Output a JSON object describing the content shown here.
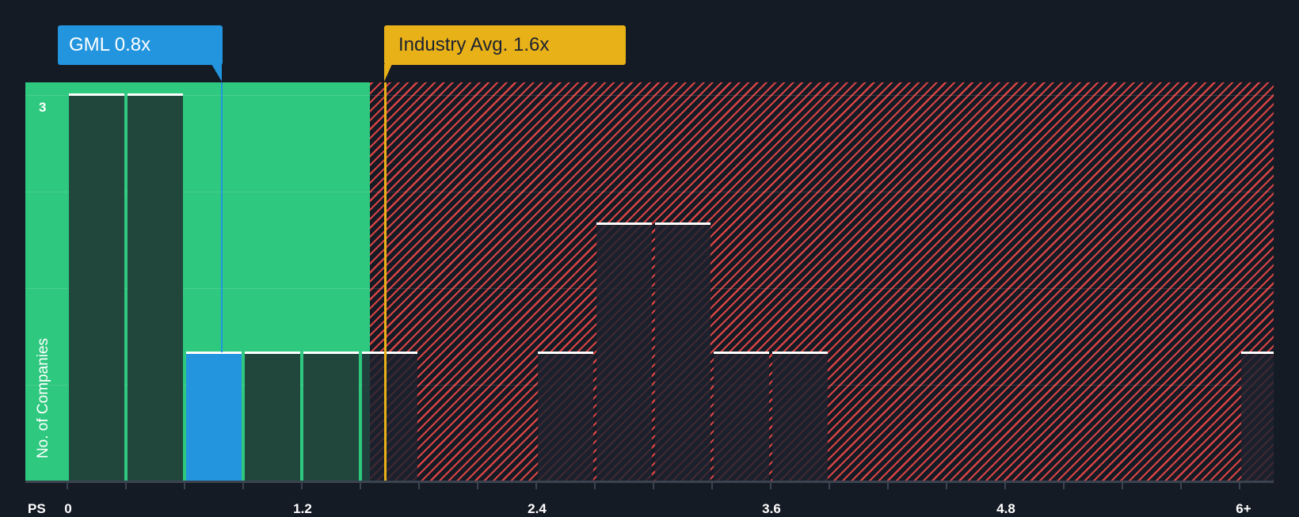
{
  "chart_data": {
    "type": "bar",
    "title": "",
    "xlabel": "PS",
    "ylabel": "No. of Companies",
    "x_tick_labels": [
      "0",
      "1.2",
      "2.4",
      "3.6",
      "4.8",
      "6+"
    ],
    "y_tick_labels": [
      "3"
    ],
    "ylim": [
      0,
      3
    ],
    "bin_width": 0.3,
    "bins": [
      {
        "start": 0.0,
        "end": 0.3,
        "count": 3
      },
      {
        "start": 0.3,
        "end": 0.6,
        "count": 3
      },
      {
        "start": 0.6,
        "end": 0.9,
        "count": 1,
        "highlight": true
      },
      {
        "start": 0.9,
        "end": 1.2,
        "count": 1
      },
      {
        "start": 1.2,
        "end": 1.5,
        "count": 1
      },
      {
        "start": 1.5,
        "end": 1.8,
        "count": 1
      },
      {
        "start": 2.4,
        "end": 2.7,
        "count": 1
      },
      {
        "start": 2.7,
        "end": 3.0,
        "count": 2
      },
      {
        "start": 3.0,
        "end": 3.3,
        "count": 2
      },
      {
        "start": 3.3,
        "end": 3.6,
        "count": 1
      },
      {
        "start": 3.6,
        "end": 3.9,
        "count": 1
      },
      {
        "start": 6.0,
        "end": 6.3,
        "count": 1,
        "label": "6+"
      }
    ],
    "annotations": [
      {
        "label": "GML 0.8x",
        "value": 0.8,
        "color": "#2394de"
      },
      {
        "label": "Industry Avg. 1.6x",
        "value": 1.6,
        "color": "#e9b118"
      }
    ],
    "regions": [
      {
        "name": "undervalued",
        "from": 0,
        "to": 1.55,
        "color": "#2ec97f"
      },
      {
        "name": "overvalued",
        "from": 1.55,
        "to": 6.3,
        "color": "#d94343",
        "pattern": "hatch"
      }
    ],
    "grid": true,
    "legend": "none"
  },
  "callouts": {
    "company": "GML 0.8x",
    "industry": "Industry Avg. 1.6x"
  },
  "axis": {
    "x_name": "PS",
    "y_name": "No. of Companies",
    "y_max_label": "3"
  },
  "colors": {
    "background": "#151b24",
    "green": "#2ec97f",
    "red": "#d94343",
    "highlight": "#2394de",
    "industry": "#e9b118"
  }
}
